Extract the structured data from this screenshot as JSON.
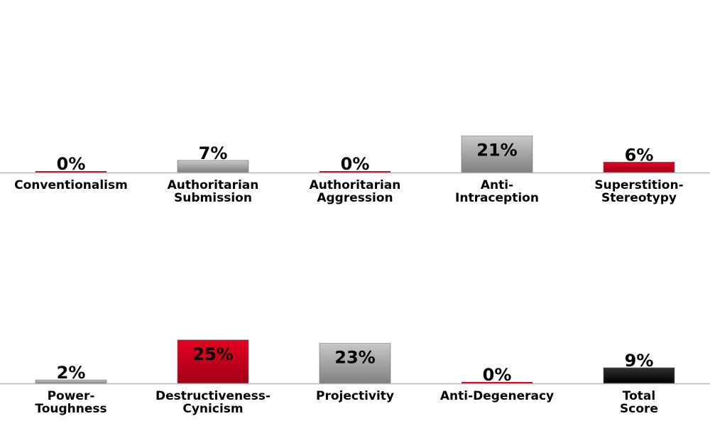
{
  "chart_data": [
    {
      "type": "bar",
      "categories": [
        [
          "Conventionalism"
        ],
        [
          "Authoritarian",
          "Submission"
        ],
        [
          "Authoritarian",
          "Aggression"
        ],
        [
          "Anti-",
          "Intraception"
        ],
        [
          "Superstition-",
          "Stereotypy"
        ]
      ],
      "values": [
        0,
        7,
        0,
        21,
        6
      ],
      "labels": [
        "0%",
        "7%",
        "0%",
        "21%",
        "6%"
      ],
      "bar_colors": [
        "#c8001e",
        "#8c8c8c",
        "#c8001e",
        "#9a9a9a",
        "#b0001a"
      ],
      "grid": false
    },
    {
      "type": "bar",
      "categories": [
        [
          "Power-",
          "Toughness"
        ],
        [
          "Destructiveness-",
          "Cynicism"
        ],
        [
          "Projectivity"
        ],
        [
          "Anti-Degeneracy"
        ],
        [
          "Total",
          "Score"
        ]
      ],
      "values": [
        2,
        25,
        23,
        0,
        9
      ],
      "labels": [
        "2%",
        "25%",
        "23%",
        "0%",
        "9%"
      ],
      "bar_colors": [
        "#8c8c8c",
        "#d4001f",
        "#9a9a9a",
        "#c8001e",
        "#000000"
      ],
      "grid": false
    }
  ],
  "colors": {
    "axis": "#b4b4b4",
    "grey_light": "#c4c4c4",
    "grey_dark": "#7e7e7e",
    "red_light": "#e8001f",
    "red_dark": "#9c0016",
    "black_light": "#2a2a2a",
    "black_dark": "#000000"
  }
}
